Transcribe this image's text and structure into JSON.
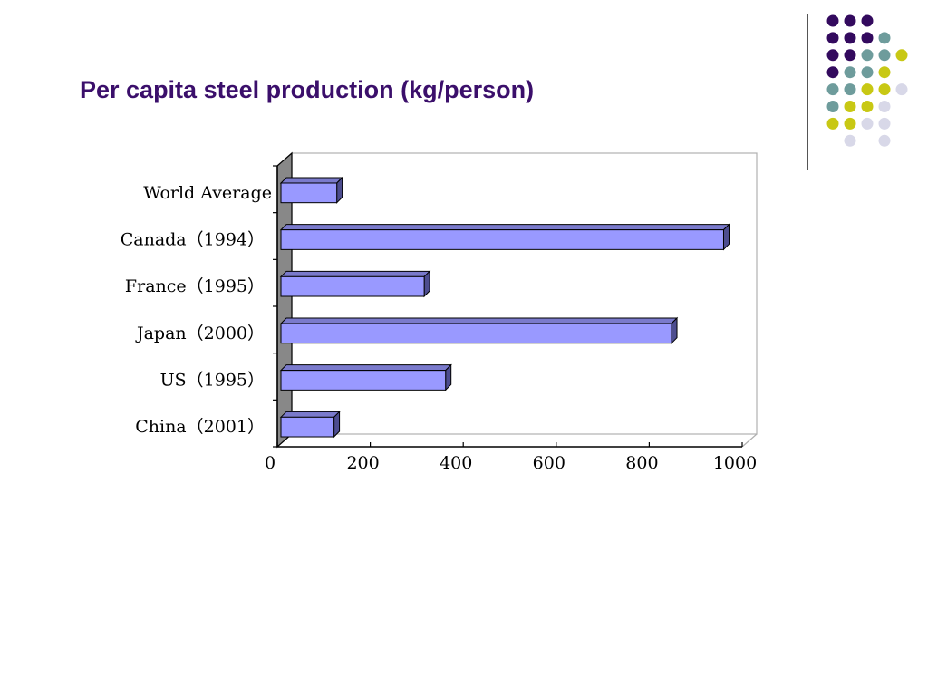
{
  "slide": {
    "title": "Per capita steel production (kg/person)"
  },
  "decoration": {
    "dot_colors": {
      "purple": "#330a5e",
      "teal": "#6e9c9c",
      "olive": "#c8c814",
      "lavender": "#d8d8e8"
    },
    "dot_grid": [
      [
        "purple",
        "purple",
        "purple",
        null,
        null
      ],
      [
        "purple",
        "purple",
        "purple",
        "teal",
        null
      ],
      [
        "purple",
        "purple",
        "teal",
        "teal",
        "olive"
      ],
      [
        "purple",
        "teal",
        "teal",
        "olive",
        null
      ],
      [
        "teal",
        "teal",
        "olive",
        "olive",
        "lavender"
      ],
      [
        "teal",
        "olive",
        "olive",
        "lavender",
        null
      ],
      [
        "olive",
        "olive",
        "lavender",
        "lavender",
        null
      ],
      [
        null,
        "lavender",
        null,
        "lavender",
        null
      ]
    ]
  },
  "chart_data": {
    "type": "bar",
    "orientation": "horizontal",
    "style": "3d",
    "categories": [
      "World Average",
      "Canada (1994)",
      "France (1995)",
      "Japan (2000)",
      "US (1995)",
      "China (2001)"
    ],
    "category_labels": [
      "World Average",
      "Canada（1994）",
      "France（1995）",
      "Japan（2000）",
      "US（1995）",
      "China（2001）"
    ],
    "values": [
      128,
      960,
      316,
      848,
      362,
      122
    ],
    "xlim": [
      0,
      1000
    ],
    "xticks": [
      0,
      200,
      400,
      600,
      800,
      1000
    ],
    "xtick_labels": [
      "0",
      "200",
      "400",
      "600",
      "800",
      "1000"
    ],
    "bar_color": "#9999ff",
    "bar_top_color": "#7a7acc",
    "bar_side_color": "#4d4d8f",
    "wall_color": "#888888",
    "grid": false,
    "legend": "none"
  }
}
